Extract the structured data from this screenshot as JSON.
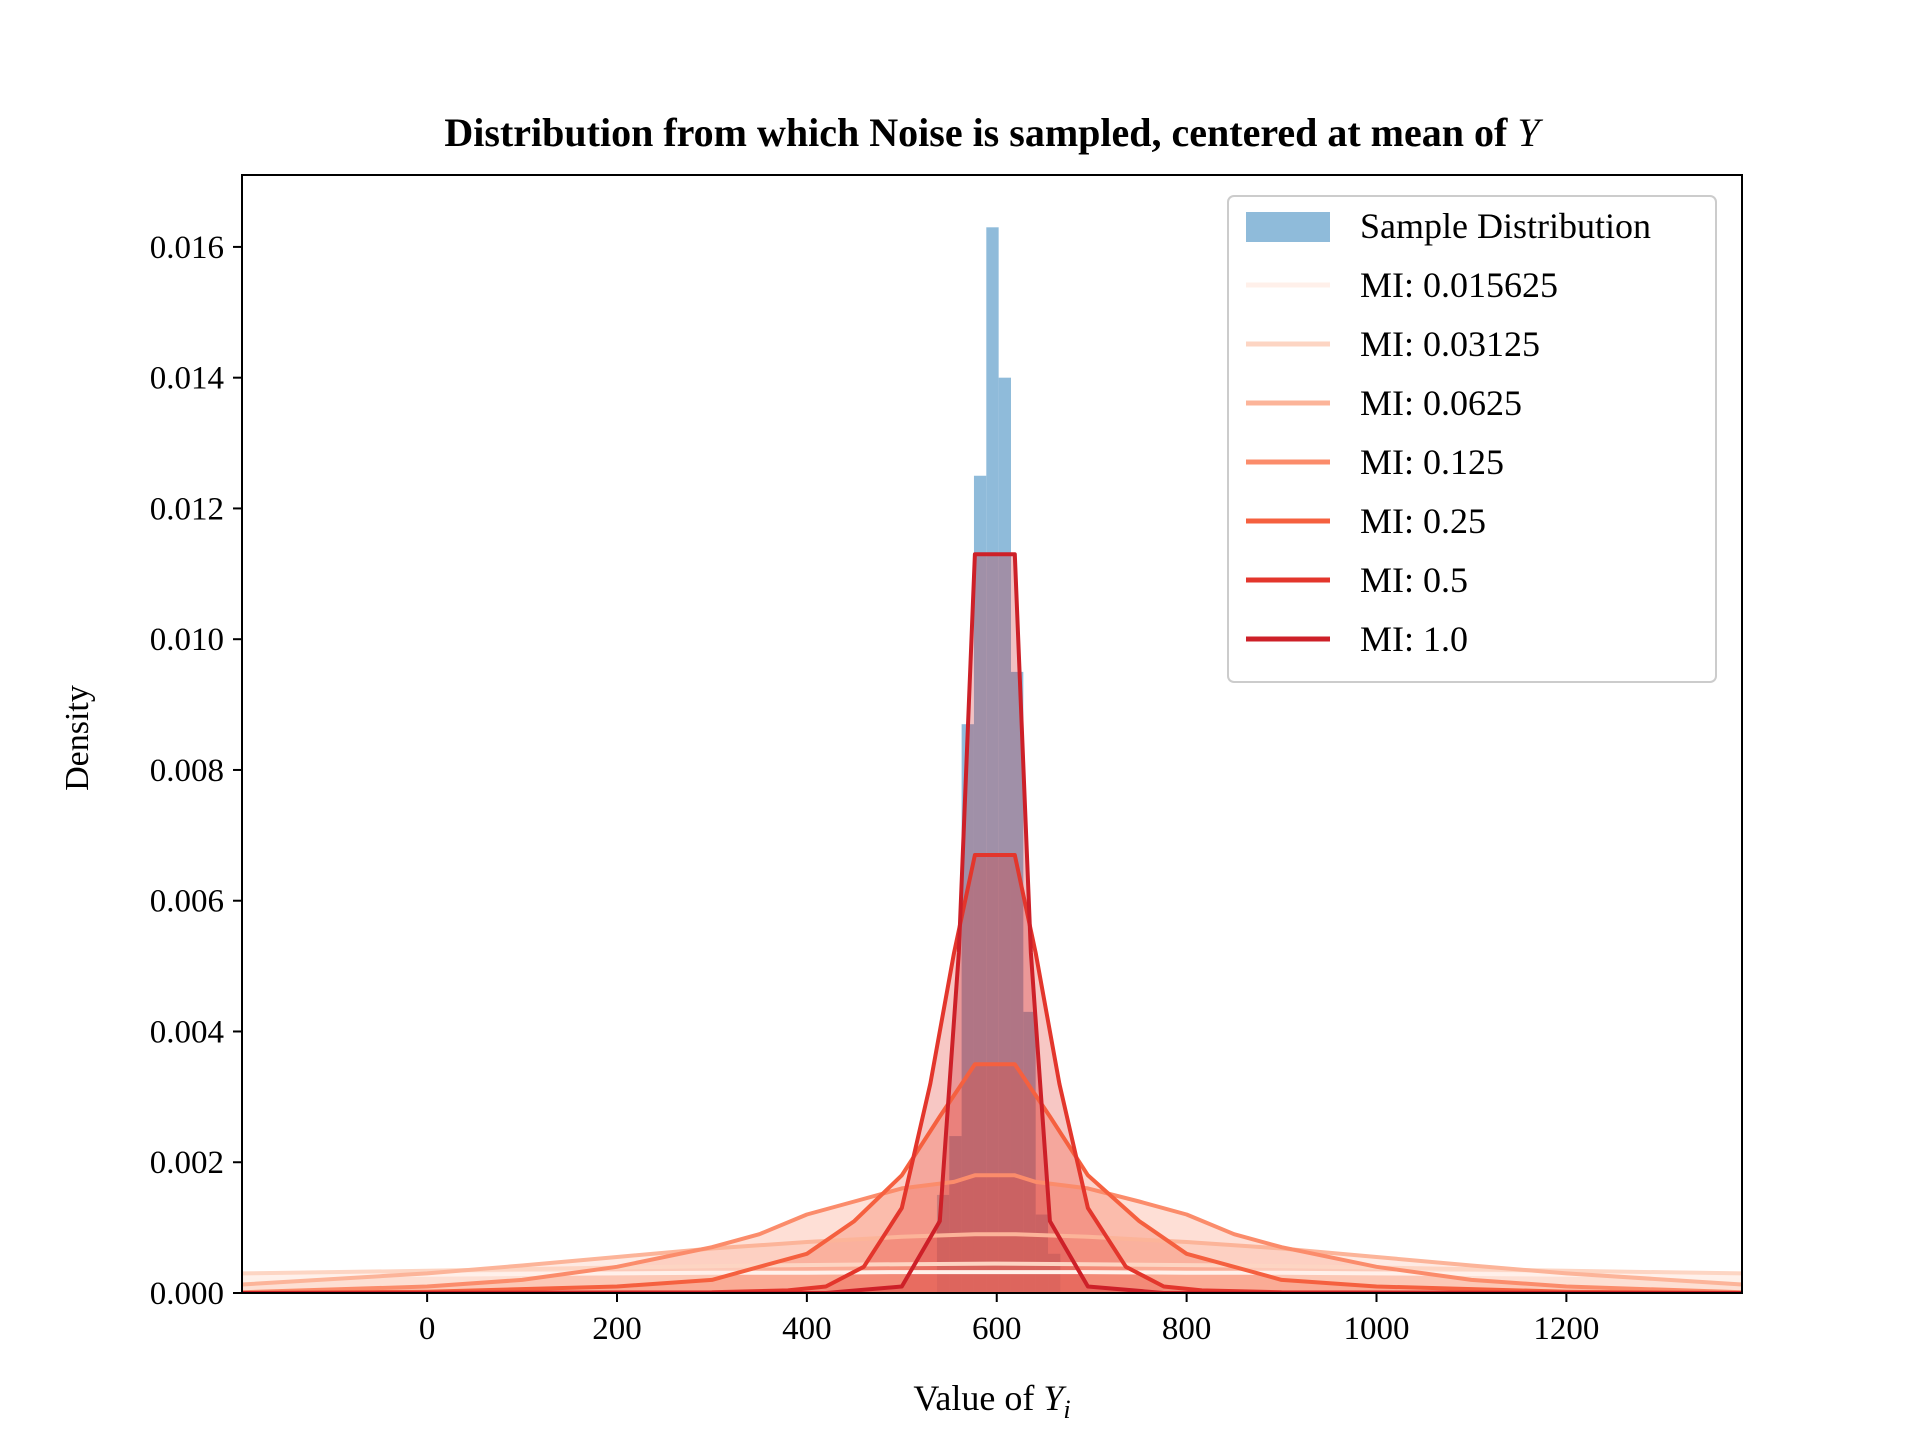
{
  "chart_data": {
    "type": "histogram-with-density-lines",
    "title": "Distribution from which Noise is sampled, centered at mean of ",
    "title_math": "Y",
    "xlabel": "Value of ",
    "xlabel_math": "Y",
    "xlabel_sub": "i",
    "ylabel": "Density",
    "xlim": [
      -195,
      1385
    ],
    "ylim": [
      0,
      0.0171
    ],
    "xticks": [
      0,
      200,
      400,
      600,
      800,
      1000,
      1200
    ],
    "yticks": [
      0.0,
      0.002,
      0.004,
      0.006,
      0.008,
      0.01,
      0.012,
      0.014,
      0.016
    ],
    "ytick_decimals": 3,
    "grid": false,
    "legend_position": "top-right",
    "histogram": {
      "name": "Sample Distribution",
      "color": "#7bafd4",
      "bin_edges": [
        537,
        550,
        563,
        576,
        589,
        602,
        615,
        628,
        641,
        654,
        667
      ],
      "densities": [
        0.0015,
        0.0024,
        0.0087,
        0.0125,
        0.0163,
        0.014,
        0.0095,
        0.0043,
        0.0012,
        0.0006
      ]
    },
    "series": [
      {
        "name": "MI: 0.015625",
        "color": "#fff0ea",
        "x": [
          -195,
          -100,
          0,
          100,
          200,
          300,
          400,
          500,
          598,
          696,
          800,
          900,
          1000,
          1100,
          1200,
          1300,
          1385
        ],
        "y": [
          0.00026,
          0.00027,
          0.00028,
          0.00029,
          0.0003,
          0.00031,
          0.00031,
          0.00032,
          0.00032,
          0.00032,
          0.00031,
          0.00031,
          0.0003,
          0.00029,
          0.00028,
          0.00027,
          0.00026
        ]
      },
      {
        "name": "MI: 0.03125",
        "color": "#fdd5c3",
        "x": [
          -195,
          0,
          200,
          350,
          500,
          598,
          696,
          850,
          1000,
          1200,
          1385
        ],
        "y": [
          0.0003,
          0.00034,
          0.00039,
          0.00042,
          0.00044,
          0.00045,
          0.00044,
          0.00042,
          0.00039,
          0.00034,
          0.0003
        ]
      },
      {
        "name": "MI: 0.0625",
        "color": "#fcb499",
        "x": [
          -195,
          0,
          100,
          200,
          300,
          400,
          500,
          577,
          619,
          696,
          800,
          900,
          1000,
          1100,
          1200,
          1385
        ],
        "y": [
          0.00013,
          0.0003,
          0.00042,
          0.00055,
          0.00068,
          0.00078,
          0.00086,
          0.0009,
          0.0009,
          0.00086,
          0.00078,
          0.00068,
          0.00055,
          0.00042,
          0.0003,
          0.00013
        ]
      },
      {
        "name": "MI: 0.125",
        "color": "#fb8c6b",
        "x": [
          -195,
          0,
          100,
          200,
          300,
          350,
          400,
          450,
          500,
          555,
          577,
          619,
          641,
          696,
          750,
          800,
          850,
          900,
          1000,
          1100,
          1200,
          1385
        ],
        "y": [
          1e-05,
          0.0001,
          0.0002,
          0.0004,
          0.0007,
          0.0009,
          0.0012,
          0.0014,
          0.0016,
          0.0017,
          0.0018,
          0.0018,
          0.0017,
          0.0016,
          0.0014,
          0.0012,
          0.0009,
          0.0007,
          0.0004,
          0.0002,
          0.0001,
          1e-05
        ]
      },
      {
        "name": "MI: 0.25",
        "color": "#f5603f",
        "x": [
          -195,
          0,
          200,
          300,
          350,
          400,
          450,
          500,
          540,
          577,
          619,
          656,
          696,
          750,
          800,
          850,
          900,
          1000,
          1200,
          1385
        ],
        "y": [
          0.0,
          2e-05,
          0.0001,
          0.0002,
          0.0004,
          0.0006,
          0.0011,
          0.0018,
          0.0027,
          0.0035,
          0.0035,
          0.0027,
          0.0018,
          0.0011,
          0.0006,
          0.0004,
          0.0002,
          0.0001,
          2e-05,
          0.0
        ]
      },
      {
        "name": "MI: 0.5",
        "color": "#e3362c",
        "x": [
          -195,
          300,
          380,
          420,
          460,
          500,
          530,
          555,
          577,
          619,
          641,
          666,
          696,
          736,
          776,
          816,
          900,
          1385
        ],
        "y": [
          0.0,
          1e-05,
          4e-05,
          0.0001,
          0.0004,
          0.0013,
          0.0032,
          0.0052,
          0.0067,
          0.0067,
          0.0052,
          0.0032,
          0.0013,
          0.0004,
          0.0001,
          4e-05,
          1e-05,
          0.0
        ]
      },
      {
        "name": "MI: 1.0",
        "color": "#cd2028",
        "x": [
          -195,
          420,
          500,
          540,
          560,
          577,
          619,
          636,
          656,
          696,
          776,
          1385
        ],
        "y": [
          0.0,
          0.0,
          0.0001,
          0.0011,
          0.0052,
          0.0113,
          0.0113,
          0.0052,
          0.0011,
          0.0001,
          0.0,
          0.0
        ]
      }
    ]
  }
}
